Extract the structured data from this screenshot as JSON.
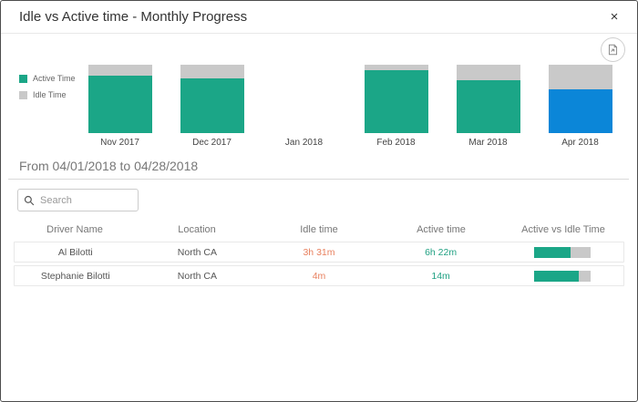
{
  "window": {
    "title": "Idle vs Active time - Monthly Progress",
    "close_label": "×"
  },
  "toolbar": {
    "export_icon": "export-report-icon"
  },
  "chart_data": {
    "type": "bar",
    "stacked": true,
    "categories": [
      "Nov 2017",
      "Dec 2017",
      "Jan 2018",
      "Feb 2018",
      "Mar 2018",
      "Apr 2018"
    ],
    "series": [
      {
        "name": "Active Time",
        "color": "#1ba687",
        "values_pct": [
          84,
          80,
          null,
          92,
          78,
          64
        ]
      },
      {
        "name": "Idle Time",
        "color": "#c9c9c9",
        "values_pct": [
          16,
          20,
          null,
          8,
          22,
          36
        ]
      }
    ],
    "highlighted_category": "Apr 2018",
    "highlight_color": "#0b86d8",
    "legend_position": "left",
    "ylim": [
      0,
      100
    ],
    "grid": false
  },
  "period": {
    "label": "From 04/01/2018 to 04/28/2018"
  },
  "search": {
    "placeholder": "Search"
  },
  "table": {
    "columns": [
      "Driver Name",
      "Location",
      "Idle time",
      "Active time",
      "Active vs Idle Time"
    ],
    "rows": [
      {
        "driver": "Al Bilotti",
        "location": "North CA",
        "idle": "3h 31m",
        "active": "6h 22m",
        "active_pct": 64
      },
      {
        "driver": "Stephanie Bilotti",
        "location": "North CA",
        "idle": "4m",
        "active": "14m",
        "active_pct": 78
      }
    ]
  },
  "colors": {
    "active_teal": "#1ba687",
    "idle_gray": "#c9c9c9",
    "highlight_blue": "#0b86d8",
    "idle_text_orange": "#e8805e",
    "active_text_teal": "#21a183"
  }
}
